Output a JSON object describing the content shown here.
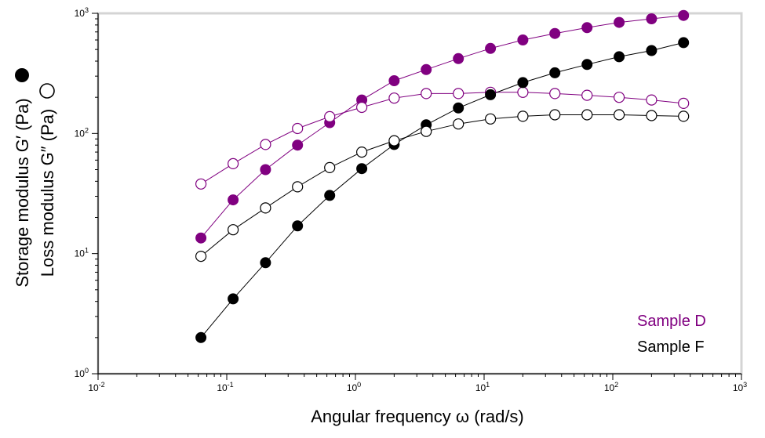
{
  "chart_data": {
    "type": "scatter",
    "x_scale": "log",
    "y_scale": "log",
    "xlabel": "Angular frequency  ω  (rad/s)",
    "ylabel_storage": "Storage modulus  G′ (Pa)",
    "ylabel_loss": "Loss modulus  G″ (Pa)",
    "xlim": [
      0.01,
      1000
    ],
    "ylim": [
      1,
      1000
    ],
    "x_ticks": [
      {
        "base": "10",
        "exp": "-2"
      },
      {
        "base": "10",
        "exp": "-1"
      },
      {
        "base": "10",
        "exp": "0"
      },
      {
        "base": "10",
        "exp": "1"
      },
      {
        "base": "10",
        "exp": "2"
      },
      {
        "base": "10",
        "exp": "3"
      }
    ],
    "y_ticks": [
      {
        "base": "10",
        "exp": "0"
      },
      {
        "base": "10",
        "exp": "1"
      },
      {
        "base": "10",
        "exp": "2"
      },
      {
        "base": "10",
        "exp": "3"
      }
    ],
    "x": [
      0.063,
      0.112,
      0.2,
      0.355,
      0.631,
      1.12,
      2.0,
      3.55,
      6.31,
      11.2,
      20.0,
      35.5,
      63.1,
      112,
      200,
      355
    ],
    "series": [
      {
        "name": "Sample D",
        "modulus": "storage",
        "color": "#800080",
        "marker": "filled",
        "values": [
          13.5,
          28,
          50,
          80,
          123,
          190,
          275,
          340,
          420,
          510,
          600,
          680,
          760,
          840,
          900,
          960
        ]
      },
      {
        "name": "Sample D",
        "modulus": "loss",
        "color": "#800080",
        "marker": "open",
        "values": [
          38,
          56,
          81,
          110,
          138,
          165,
          197,
          215,
          215,
          220,
          220,
          215,
          208,
          200,
          190,
          178
        ]
      },
      {
        "name": "Sample F",
        "modulus": "storage",
        "color": "#000000",
        "marker": "filled",
        "values": [
          2.0,
          4.2,
          8.4,
          17,
          30.5,
          51,
          81,
          118,
          163,
          210,
          265,
          320,
          375,
          435,
          490,
          570
        ]
      },
      {
        "name": "Sample F",
        "modulus": "loss",
        "color": "#000000",
        "marker": "open",
        "values": [
          9.5,
          15.8,
          24,
          36,
          52,
          70,
          87,
          104,
          120,
          132,
          139,
          143,
          143,
          143,
          141,
          139
        ]
      }
    ],
    "legend": [
      {
        "label": "Sample D",
        "color": "#800080"
      },
      {
        "label": "Sample F",
        "color": "#000000"
      }
    ],
    "legend_position": "bottom-right",
    "grid": false
  }
}
